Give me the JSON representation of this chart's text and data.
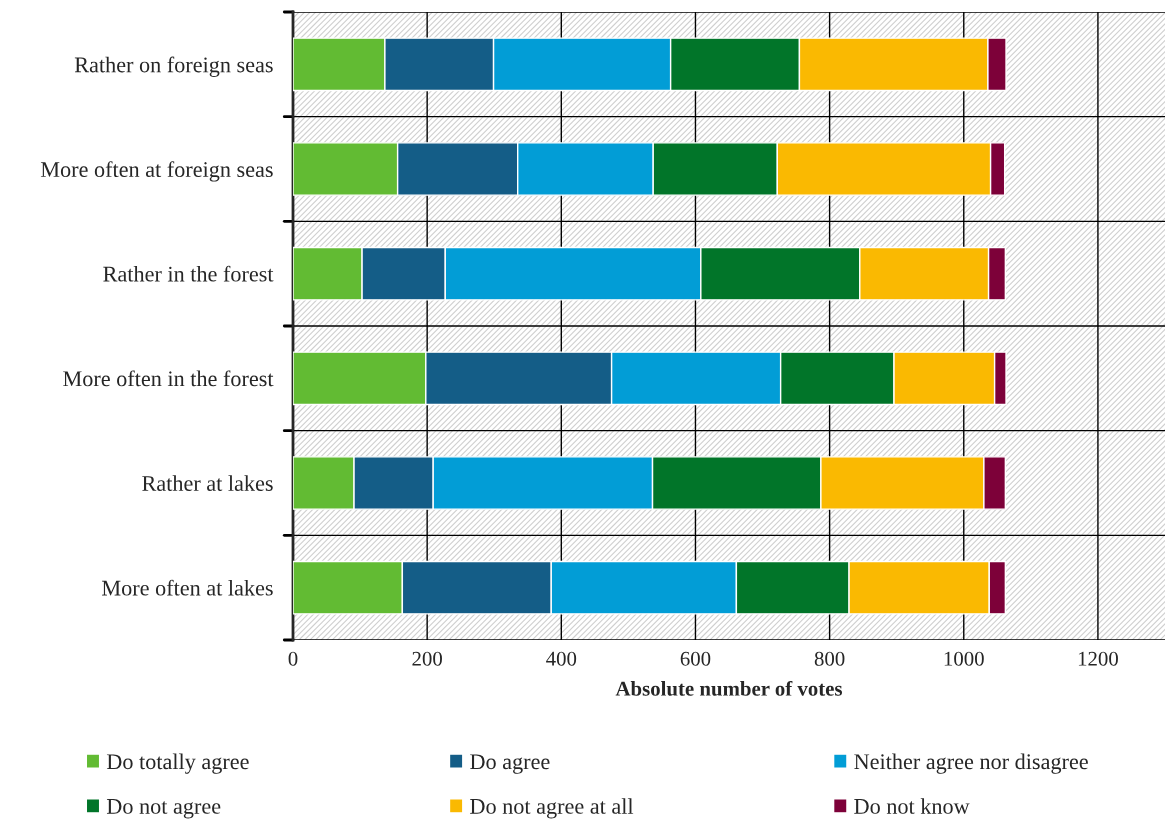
{
  "chart_data": {
    "type": "bar",
    "orientation": "horizontal",
    "stacked": true,
    "xlabel": "Absolute number of votes",
    "categories": [
      "Rather on foreign seas",
      "More often at foreign seas",
      "Rather in the forest",
      "More often in the forest",
      "Rather at lakes",
      "More often at lakes"
    ],
    "series": [
      {
        "name": "Do totally agree",
        "color": "#62bb33",
        "values": [
          137,
          156,
          103,
          198,
          91,
          163
        ]
      },
      {
        "name": "Do agree",
        "color": "#145d87",
        "values": [
          162,
          179,
          124,
          277,
          118,
          222
        ]
      },
      {
        "name": "Neither agree nor disagree",
        "color": "#029dd6",
        "values": [
          264,
          202,
          381,
          252,
          327,
          276
        ]
      },
      {
        "name": "Do not agree",
        "color": "#017529",
        "values": [
          192,
          185,
          237,
          169,
          251,
          168
        ]
      },
      {
        "name": "Do not agree at all",
        "color": "#fab901",
        "values": [
          281,
          318,
          192,
          150,
          243,
          209
        ]
      },
      {
        "name": "Do not know",
        "color": "#7d0139",
        "values": [
          27,
          21,
          25,
          17,
          32,
          24
        ]
      }
    ],
    "xlim": [
      0,
      1300
    ],
    "xticks": [
      0,
      200,
      400,
      600,
      800,
      1000,
      1200
    ],
    "grid": true,
    "legend": "bottom"
  }
}
